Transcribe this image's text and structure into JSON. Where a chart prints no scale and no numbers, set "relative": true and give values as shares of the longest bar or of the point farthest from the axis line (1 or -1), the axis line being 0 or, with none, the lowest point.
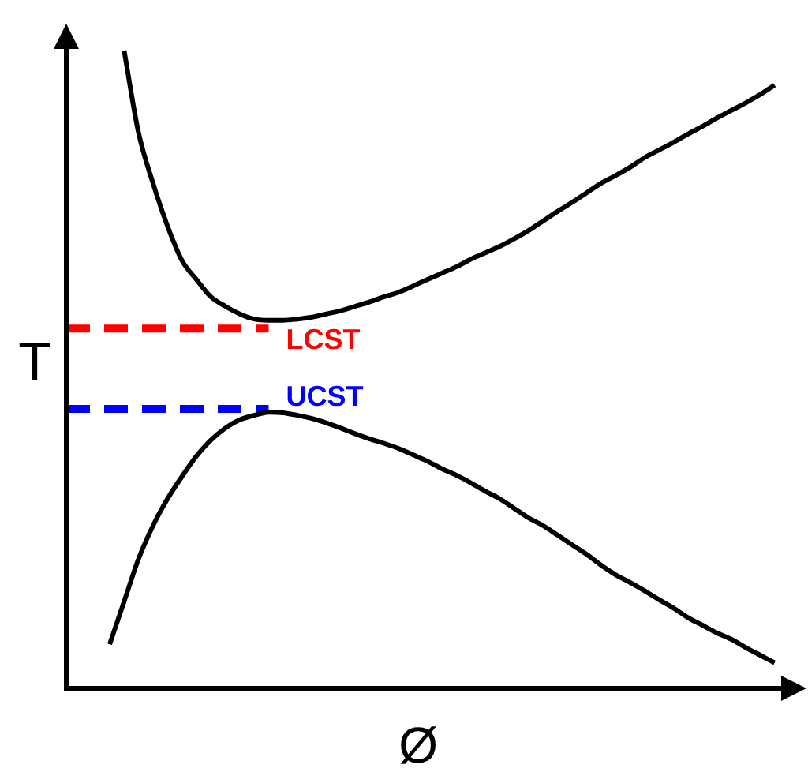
{
  "chart_data": {
    "type": "line",
    "relative": true,
    "xlabel": "Ø",
    "ylabel": "T",
    "marker": "none",
    "categories": [
      null,
      null,
      null,
      null,
      null,
      null,
      null,
      null,
      null,
      null,
      null,
      null,
      null,
      null,
      null,
      null,
      null,
      null,
      null,
      null,
      null,
      null,
      null,
      null,
      null,
      null,
      null,
      null,
      null,
      null,
      null,
      null,
      null,
      null,
      null,
      null,
      null,
      null,
      null,
      null,
      null,
      null,
      null,
      null,
      null,
      null,
      null,
      null,
      null,
      null,
      null
    ],
    "series": [
      {
        "color": "#000000",
        "values": [
          null,
          null,
          null,
          null,
          1,
          0.871,
          0.792,
          0.725,
          0.671,
          0.641,
          0.614,
          0.599,
          0.587,
          0.579,
          0.577,
          0.577,
          0.579,
          0.582,
          0.587,
          0.592,
          0.599,
          0.606,
          0.614,
          0.621,
          0.631,
          0.641,
          0.651,
          0.661,
          0.673,
          0.683,
          0.693,
          0.705,
          0.718,
          0.733,
          0.748,
          0.762,
          0.777,
          0.792,
          0.804,
          0.817,
          0.832,
          0.844,
          0.856,
          0.869,
          0.881,
          0.894,
          0.906,
          0.918,
          0.931,
          0.946,
          null
        ]
      },
      {
        "color": "#000000",
        "values": [
          null,
          null,
          null,
          0.069,
          0.136,
          0.203,
          0.255,
          0.297,
          0.332,
          0.364,
          0.389,
          0.408,
          0.421,
          0.428,
          0.433,
          0.432,
          0.428,
          0.423,
          0.416,
          0.408,
          0.399,
          0.391,
          0.384,
          0.376,
          0.366,
          0.356,
          0.344,
          0.334,
          0.322,
          0.309,
          0.297,
          0.282,
          0.267,
          0.255,
          0.24,
          0.225,
          0.21,
          0.193,
          0.178,
          0.166,
          0.153,
          0.139,
          0.126,
          0.111,
          0.099,
          0.087,
          0.077,
          0.064,
          0.052,
          0.04,
          null
        ]
      },
      {
        "name": "LCST",
        "color": "#ff0000",
        "line_style": "dashed",
        "values": [
          0.564,
          0.564,
          0.564,
          0.564,
          0.564,
          0.564,
          0.564,
          0.564,
          0.564,
          0.564,
          0.564,
          0.564,
          0.564,
          0.564,
          0.564,
          null,
          null,
          null,
          null,
          null,
          null,
          null,
          null,
          null,
          null,
          null,
          null,
          null,
          null,
          null,
          null,
          null,
          null,
          null,
          null,
          null,
          null,
          null,
          null,
          null,
          null,
          null,
          null,
          null,
          null,
          null,
          null,
          null,
          null,
          null,
          null
        ]
      },
      {
        "name": "UCST",
        "color": "#0000ff",
        "line_style": "dashed",
        "values": [
          0.438,
          0.438,
          0.438,
          0.438,
          0.438,
          0.438,
          0.438,
          0.438,
          0.438,
          0.438,
          0.438,
          0.438,
          0.438,
          0.438,
          0.438,
          null,
          null,
          null,
          null,
          null,
          null,
          null,
          null,
          null,
          null,
          null,
          null,
          null,
          null,
          null,
          null,
          null,
          null,
          null,
          null,
          null,
          null,
          null,
          null,
          null,
          null,
          null,
          null,
          null,
          null,
          null,
          null,
          null,
          null,
          null,
          null
        ]
      }
    ]
  }
}
